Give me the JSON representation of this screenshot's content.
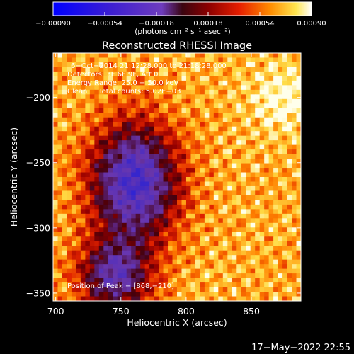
{
  "chart_data": {
    "type": "heatmap",
    "title": "Reconstructed RHESSI Image",
    "xlabel": "Heliocentric X (arcsec)",
    "ylabel": "Heliocentric Y (arcsec)",
    "xlim": [
      698,
      888
    ],
    "ylim": [
      -356,
      -166
    ],
    "x_ticks": [
      700,
      750,
      800,
      850
    ],
    "y_ticks": [
      -350,
      -300,
      -250,
      -200
    ],
    "x_tick_labels": [
      "700",
      "750",
      "800",
      "850"
    ],
    "y_tick_labels": [
      "−350",
      "−300",
      "−250",
      "−200"
    ],
    "colorbar": {
      "min": -0.0009,
      "max": 0.0009,
      "ticks": [
        -0.0009,
        -0.00054,
        -0.00018,
        0.00018,
        0.00054,
        0.0009
      ],
      "tick_labels": [
        "−0.00090",
        "−0.00054",
        "−0.00018",
        "0.00018",
        "0.00054",
        "0.00090"
      ],
      "units_label": "(photons cm⁻² s⁻¹ asec⁻²)"
    },
    "annotations": {
      "time_range": "6−Oct−2014 21:12:28.000 to 21:18:28.000",
      "detectors": "Detectors: 3F 6F 9F, Att 0",
      "energy": "Energy Range: 25.0 − 50.0 keV",
      "algorithm": "Clean     Total counts: 5.02E+03",
      "peak": "Position of Peak = [868,−210]"
    },
    "peak_position": [
      868,
      -210
    ],
    "grid": false
  },
  "footer": {
    "date": "17−May−2022 22:55"
  },
  "colors": {
    "background": "#000000",
    "text": "#ffffff"
  }
}
